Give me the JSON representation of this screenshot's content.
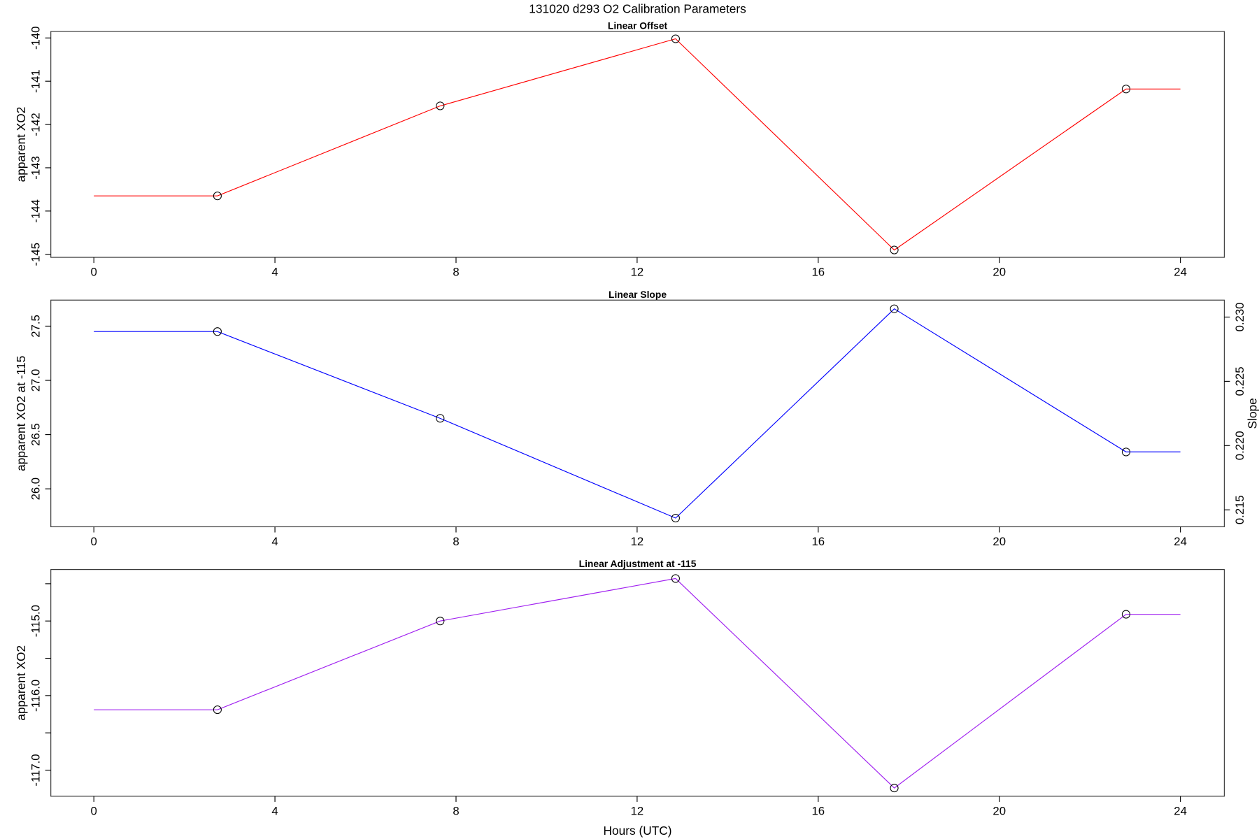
{
  "chart_data": {
    "type": "line",
    "title": "131020   d293   O2 Calibration Parameters",
    "xlabel": "Hours (UTC)",
    "xlim": [
      -0.95,
      24.97
    ],
    "xticks": [
      0,
      4,
      8,
      12,
      16,
      20,
      24
    ],
    "grid": false,
    "panels": [
      {
        "title": "Linear Offset",
        "ylabel": "apparent XO2",
        "color": "#ff0000",
        "ylim": [
          -145.07,
          -139.85
        ],
        "yticks": [
          -145,
          -144,
          -143,
          -142,
          -141,
          -140
        ],
        "ytick_labels": [
          "-145",
          "-144",
          "-143",
          "-142",
          "-141",
          "-140"
        ],
        "minor_yticks": [],
        "x": [
          2.73,
          7.65,
          12.85,
          17.68,
          22.8
        ],
        "y": [
          -143.65,
          -141.57,
          -140.02,
          -144.9,
          -141.18
        ],
        "extend_to": [
          0,
          24
        ]
      },
      {
        "title": "Linear Slope",
        "ylabel": "apparent XO2 at -115",
        "color": "#0000ff",
        "ylim": [
          25.65,
          27.74
        ],
        "yticks": [
          26.0,
          26.5,
          27.0,
          27.5
        ],
        "ytick_labels": [
          "26.0",
          "26.5",
          "27.0",
          "27.5"
        ],
        "minor_yticks": [],
        "x": [
          2.73,
          7.65,
          12.85,
          17.68,
          22.8
        ],
        "y": [
          27.45,
          26.65,
          25.73,
          27.66,
          26.34
        ],
        "extend_to": [
          0,
          24
        ],
        "right_axis": {
          "ylabel": "Slope",
          "ylim": [
            0.21368,
            0.23132
          ],
          "yticks": [
            0.215,
            0.22,
            0.225,
            0.23
          ],
          "ytick_labels": [
            "0.215",
            "0.220",
            "0.225",
            "0.230"
          ],
          "values": [
            0.2289,
            0.2221,
            0.2143,
            0.2306,
            0.2195
          ]
        }
      },
      {
        "title": "Linear Adjustment at -115",
        "ylabel": "apparent XO2",
        "color": "#a020f0",
        "ylim": [
          -117.35,
          -114.31
        ],
        "yticks": [
          -117.0,
          -116.0,
          -115.0
        ],
        "ytick_labels": [
          "-117.0",
          "-116.0",
          "-115.0"
        ],
        "minor_yticks": [
          -116.5,
          -115.5,
          -114.5
        ],
        "x": [
          2.73,
          7.65,
          12.85,
          17.68,
          22.8
        ],
        "y": [
          -116.19,
          -115.0,
          -114.43,
          -117.24,
          -114.91
        ],
        "extend_to": [
          0,
          24
        ]
      }
    ]
  }
}
